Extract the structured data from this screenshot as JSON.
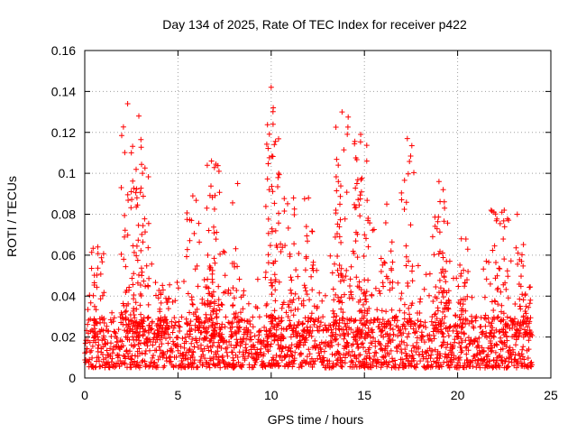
{
  "chart_data": {
    "type": "scatter",
    "title": "Day 134 of 2025, Rate Of TEC Index for receiver p422",
    "xlabel": "GPS time / hours",
    "ylabel": "ROTI / TECUs",
    "xlim": [
      0,
      25
    ],
    "ylim": [
      0,
      0.16
    ],
    "xticks": [
      0,
      5,
      10,
      15,
      20,
      25
    ],
    "xtick_labels": [
      "0",
      "5",
      "10",
      "15",
      "20",
      "25"
    ],
    "yticks": [
      0,
      0.02,
      0.04,
      0.06,
      0.08,
      0.1,
      0.12,
      0.14,
      0.16
    ],
    "ytick_labels": [
      "0",
      "0.02",
      "0.04",
      "0.06",
      "0.08",
      "0.1",
      "0.12",
      "0.14",
      "0.16"
    ],
    "grid": true,
    "marker": "plus",
    "color": "#ff0000",
    "series": [
      {
        "name": "ROTI",
        "x_range": [
          0,
          24
        ],
        "baseline_range": [
          0.005,
          0.03
        ],
        "peaks": [
          {
            "x": 0.7,
            "y": 0.064
          },
          {
            "x": 2.3,
            "y": 0.134
          },
          {
            "x": 2.5,
            "y": 0.11
          },
          {
            "x": 2.9,
            "y": 0.128
          },
          {
            "x": 3.1,
            "y": 0.1
          },
          {
            "x": 4.2,
            "y": 0.043
          },
          {
            "x": 5.8,
            "y": 0.089
          },
          {
            "x": 6.6,
            "y": 0.06
          },
          {
            "x": 6.8,
            "y": 0.106
          },
          {
            "x": 7.2,
            "y": 0.101
          },
          {
            "x": 8.2,
            "y": 0.095
          },
          {
            "x": 10.0,
            "y": 0.142
          },
          {
            "x": 10.1,
            "y": 0.124
          },
          {
            "x": 10.4,
            "y": 0.1
          },
          {
            "x": 11.2,
            "y": 0.088
          },
          {
            "x": 12.0,
            "y": 0.088
          },
          {
            "x": 13.6,
            "y": 0.104
          },
          {
            "x": 13.8,
            "y": 0.13
          },
          {
            "x": 14.6,
            "y": 0.095
          },
          {
            "x": 14.8,
            "y": 0.119
          },
          {
            "x": 15.2,
            "y": 0.078
          },
          {
            "x": 16.2,
            "y": 0.085
          },
          {
            "x": 17.3,
            "y": 0.117
          },
          {
            "x": 19.0,
            "y": 0.096
          },
          {
            "x": 19.3,
            "y": 0.083
          },
          {
            "x": 20.2,
            "y": 0.068
          },
          {
            "x": 21.8,
            "y": 0.082
          },
          {
            "x": 22.5,
            "y": 0.082
          },
          {
            "x": 23.2,
            "y": 0.08
          },
          {
            "x": 23.9,
            "y": 0.038
          }
        ]
      }
    ]
  }
}
